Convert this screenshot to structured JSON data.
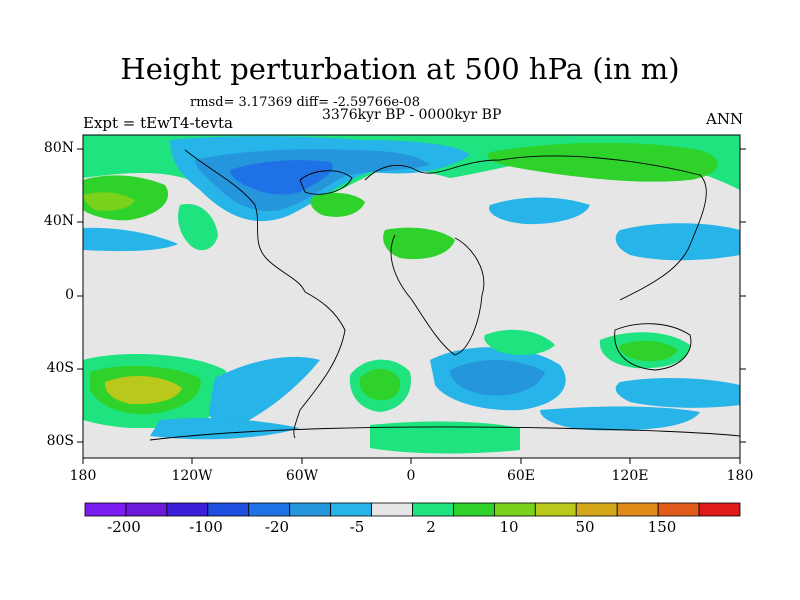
{
  "title": "Height perturbation at 500 hPa (in m)",
  "stats": "rmsd= 3.17369 diff= -2.59766e-08",
  "period": "3376kyr BP - 0000kyr BP",
  "experiment": "Expt = tEwT4-tevta",
  "season": "ANN",
  "lat_ticks": [
    "80N",
    "40N",
    "0",
    "40S",
    "80S"
  ],
  "lon_ticks": [
    "180",
    "120W",
    "60W",
    "0",
    "60E",
    "120E",
    "180"
  ],
  "colorbar": {
    "colors": [
      "#7c1df0",
      "#6a1ad8",
      "#3c1fd8",
      "#1f4fe0",
      "#1e72e6",
      "#2596dc",
      "#27b4e8",
      "#e6e6e6",
      "#1ee37f",
      "#2ed22a",
      "#7ad21a",
      "#b9c81a",
      "#d2a81a",
      "#e08a1a",
      "#e05a1a",
      "#e01a1a"
    ],
    "labels": [
      "-200",
      "-100",
      "-20",
      "-5",
      "2",
      "10",
      "50",
      "150"
    ]
  },
  "colors": {
    "land_background": "#e6e6e6",
    "coast": "#000000"
  }
}
